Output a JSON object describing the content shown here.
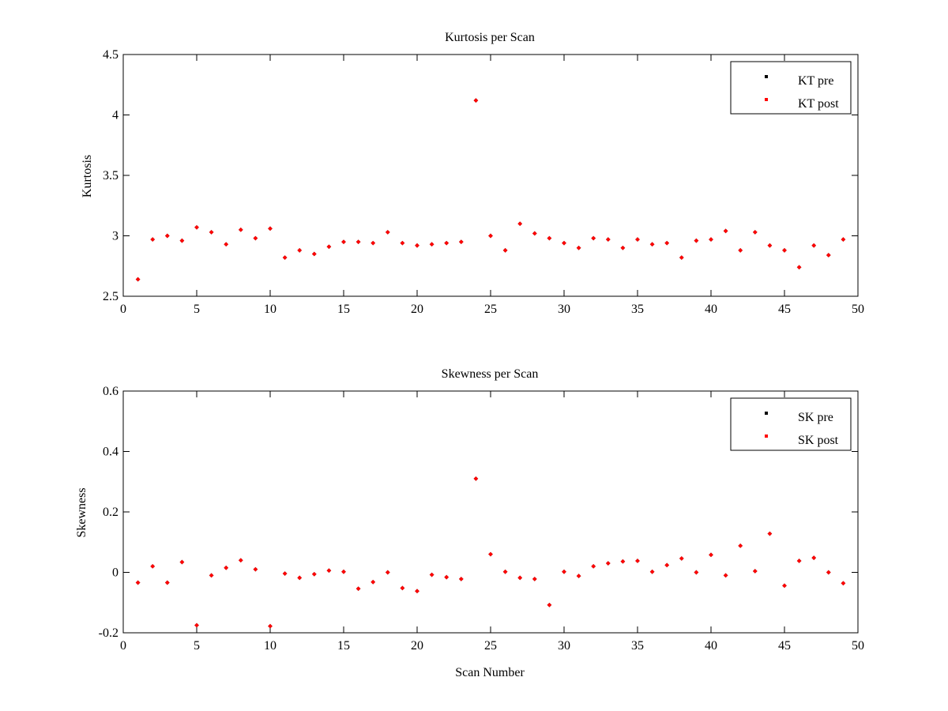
{
  "chart_data": [
    {
      "type": "scatter",
      "title": "Kurtosis per Scan",
      "xlabel": "",
      "ylabel": "Kurtosis",
      "xlim": [
        0,
        50
      ],
      "ylim": [
        2.5,
        4.5
      ],
      "xticks": [
        0,
        5,
        10,
        15,
        20,
        25,
        30,
        35,
        40,
        45,
        50
      ],
      "xtick_labels": [
        "0",
        "5",
        "10",
        "15",
        "20",
        "25",
        "30",
        "35",
        "40",
        "45",
        "50"
      ],
      "yticks": [
        2.5,
        3,
        3.5,
        4,
        4.5
      ],
      "ytick_labels": [
        "2.5",
        "3",
        "3.5",
        "4",
        "4.5"
      ],
      "grid": false,
      "legend_position": "top-right",
      "x": [
        1,
        2,
        3,
        4,
        5,
        6,
        7,
        8,
        9,
        10,
        11,
        12,
        13,
        14,
        15,
        16,
        17,
        18,
        19,
        20,
        21,
        22,
        23,
        24,
        25,
        26,
        27,
        28,
        29,
        30,
        31,
        32,
        33,
        34,
        35,
        36,
        37,
        38,
        39,
        40,
        41,
        42,
        43,
        44,
        45,
        46,
        47,
        48,
        49
      ],
      "series": [
        {
          "name": "KT pre",
          "color": "#000000",
          "values": [
            2.64,
            2.97,
            3.0,
            2.96,
            3.07,
            3.03,
            2.93,
            3.05,
            2.98,
            3.06,
            2.82,
            2.88,
            2.85,
            2.91,
            2.95,
            2.95,
            2.94,
            3.03,
            2.94,
            2.92,
            2.93,
            2.94,
            2.95,
            4.12,
            3.0,
            2.88,
            3.1,
            3.02,
            2.98,
            2.94,
            2.9,
            2.98,
            2.97,
            2.9,
            2.97,
            2.93,
            2.94,
            2.82,
            2.96,
            2.97,
            3.04,
            2.88,
            3.03,
            2.92,
            2.88,
            2.74,
            2.92,
            2.84,
            2.97
          ]
        },
        {
          "name": "KT post",
          "color": "#ff0000",
          "values": [
            2.64,
            2.97,
            3.0,
            2.96,
            3.07,
            3.03,
            2.93,
            3.05,
            2.98,
            3.06,
            2.82,
            2.88,
            2.85,
            2.91,
            2.95,
            2.95,
            2.94,
            3.03,
            2.94,
            2.92,
            2.93,
            2.94,
            2.95,
            4.12,
            3.0,
            2.88,
            3.1,
            3.02,
            2.98,
            2.94,
            2.9,
            2.98,
            2.97,
            2.9,
            2.97,
            2.93,
            2.94,
            2.82,
            2.96,
            2.97,
            3.04,
            2.88,
            3.03,
            2.92,
            2.88,
            2.74,
            2.92,
            2.84,
            2.97
          ]
        }
      ]
    },
    {
      "type": "scatter",
      "title": "Skewness per Scan",
      "xlabel": "Scan Number",
      "ylabel": "Skewness",
      "xlim": [
        0,
        50
      ],
      "ylim": [
        -0.2,
        0.6
      ],
      "xticks": [
        0,
        5,
        10,
        15,
        20,
        25,
        30,
        35,
        40,
        45,
        50
      ],
      "xtick_labels": [
        "0",
        "5",
        "10",
        "15",
        "20",
        "25",
        "30",
        "35",
        "40",
        "45",
        "50"
      ],
      "yticks": [
        -0.2,
        0,
        0.2,
        0.4,
        0.6
      ],
      "ytick_labels": [
        "-0.2",
        "0",
        "0.2",
        "0.4",
        "0.6"
      ],
      "grid": false,
      "legend_position": "top-right",
      "x": [
        1,
        2,
        3,
        4,
        5,
        6,
        7,
        8,
        9,
        10,
        11,
        12,
        13,
        14,
        15,
        16,
        17,
        18,
        19,
        20,
        21,
        22,
        23,
        24,
        25,
        26,
        27,
        28,
        29,
        30,
        31,
        32,
        33,
        34,
        35,
        36,
        37,
        38,
        39,
        40,
        41,
        42,
        43,
        44,
        45,
        46,
        47,
        48,
        49
      ],
      "series": [
        {
          "name": "SK pre",
          "color": "#000000",
          "values": [
            -0.034,
            0.02,
            -0.034,
            0.034,
            -0.175,
            -0.01,
            0.015,
            0.04,
            0.01,
            -0.178,
            -0.004,
            -0.018,
            -0.006,
            0.006,
            0.002,
            -0.054,
            -0.032,
            0.0,
            -0.052,
            -0.062,
            -0.008,
            -0.016,
            -0.022,
            0.31,
            0.06,
            0.002,
            -0.018,
            -0.022,
            -0.108,
            0.002,
            -0.012,
            0.02,
            0.03,
            0.036,
            0.038,
            0.002,
            0.024,
            0.046,
            0.0,
            0.058,
            -0.01,
            0.088,
            0.004,
            0.128,
            -0.044,
            0.038,
            0.048,
            0.0,
            -0.036
          ]
        },
        {
          "name": "SK post",
          "color": "#ff0000",
          "values": [
            -0.034,
            0.02,
            -0.034,
            0.034,
            -0.175,
            -0.01,
            0.015,
            0.04,
            0.01,
            -0.178,
            -0.004,
            -0.018,
            -0.006,
            0.006,
            0.002,
            -0.054,
            -0.032,
            0.0,
            -0.052,
            -0.062,
            -0.008,
            -0.016,
            -0.022,
            0.31,
            0.06,
            0.002,
            -0.018,
            -0.022,
            -0.108,
            0.002,
            -0.012,
            0.02,
            0.03,
            0.036,
            0.038,
            0.002,
            0.024,
            0.046,
            0.0,
            0.058,
            -0.01,
            0.088,
            0.004,
            0.128,
            -0.044,
            0.038,
            0.048,
            0.0,
            -0.036
          ]
        }
      ]
    }
  ]
}
